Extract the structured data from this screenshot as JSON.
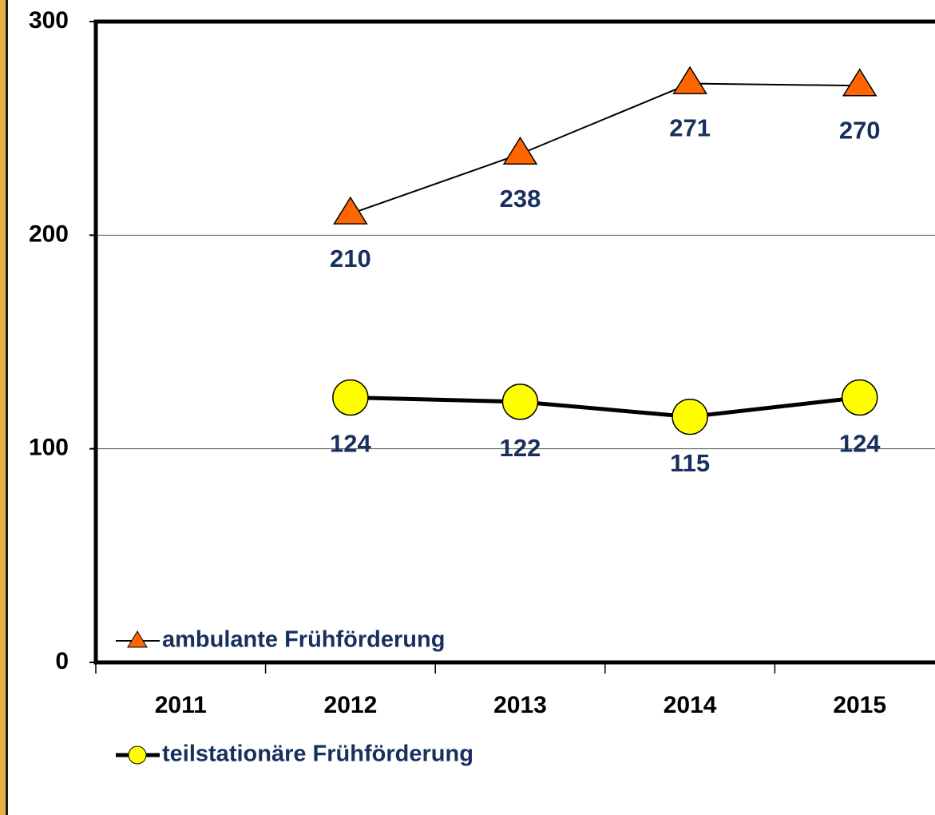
{
  "chart_data": {
    "type": "line",
    "categories": [
      "2011",
      "2012",
      "2013",
      "2014",
      "2015"
    ],
    "series": [
      {
        "name": "ambulante Frühförderung",
        "color": "#ff6600",
        "marker": "triangle",
        "values": [
          null,
          210,
          238,
          271,
          270
        ]
      },
      {
        "name": "teilstationäre Frühförderung",
        "color": "#ffff00",
        "marker": "circle",
        "values": [
          null,
          124,
          122,
          115,
          124
        ]
      }
    ],
    "ylim": [
      0,
      300
    ],
    "yticks": [
      0,
      100,
      200,
      300
    ],
    "grid": true,
    "legend": "bottom"
  }
}
